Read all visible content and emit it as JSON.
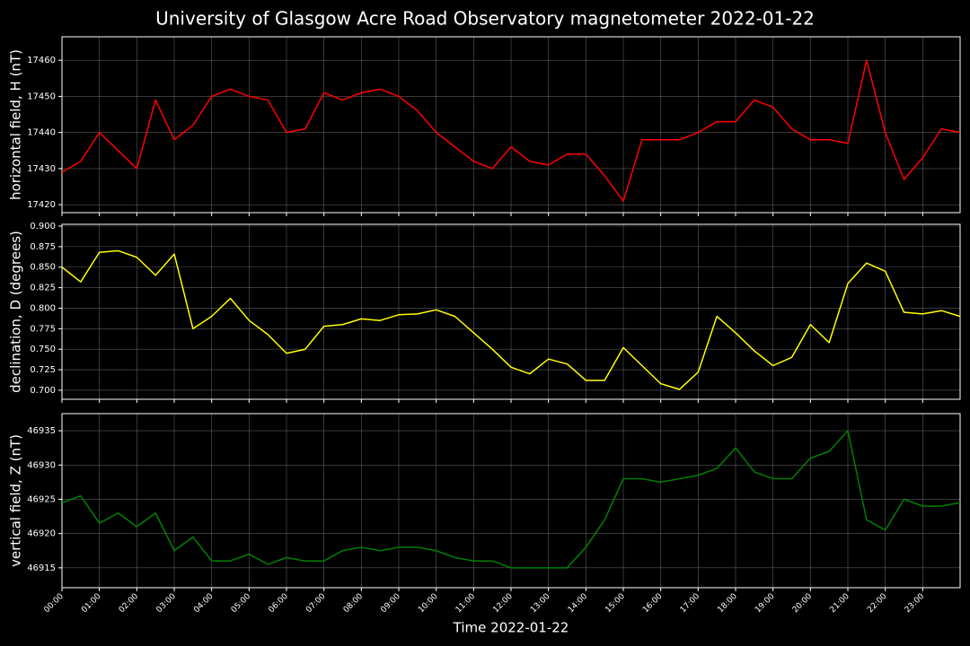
{
  "title": "University of Glasgow Acre Road Observatory magnetometer 2022-01-22",
  "chart_data": [
    {
      "type": "line",
      "ylabel": "horizontal field, H (nT)",
      "color": "#ff0000",
      "grid": true,
      "x": [
        0,
        0.5,
        1,
        1.5,
        2,
        2.5,
        3,
        3.5,
        4,
        4.5,
        5,
        5.5,
        6,
        6.5,
        7,
        7.5,
        8,
        8.5,
        9,
        9.5,
        10,
        10.5,
        11,
        11.5,
        12,
        12.5,
        13,
        13.5,
        14,
        14.5,
        15,
        15.5,
        16,
        16.5,
        17,
        17.5,
        18,
        18.5,
        19,
        19.5,
        20,
        20.5,
        21,
        21.5,
        22,
        22.5,
        23,
        23.5,
        24
      ],
      "values": [
        17429,
        17432,
        17440,
        17435,
        17430,
        17449,
        17438,
        17442,
        17450,
        17452,
        17450,
        17449,
        17440,
        17441,
        17451,
        17449,
        17451,
        17452,
        17450,
        17446,
        17440,
        17436,
        17432,
        17430,
        17436,
        17432,
        17431,
        17434,
        17434,
        17428,
        17421,
        17438,
        17438,
        17438,
        17440,
        17443,
        17443,
        17449,
        17447,
        17441,
        17438,
        17438,
        17437,
        17460,
        17440,
        17427,
        17433,
        17441,
        17440
      ],
      "xlim": [
        0,
        24
      ],
      "ylim": [
        17417.8,
        17466.5
      ],
      "yticks": [
        17420,
        17430,
        17440,
        17450,
        17460
      ]
    },
    {
      "type": "line",
      "ylabel": "declination, D (degrees)",
      "color": "#ffff00",
      "grid": true,
      "x": [
        0,
        0.5,
        1,
        1.5,
        2,
        2.5,
        3,
        3.5,
        4,
        4.5,
        5,
        5.5,
        6,
        6.5,
        7,
        7.5,
        8,
        8.5,
        9,
        9.5,
        10,
        10.5,
        11,
        11.5,
        12,
        12.5,
        13,
        13.5,
        14,
        14.5,
        15,
        15.5,
        16,
        16.5,
        17,
        17.5,
        18,
        18.5,
        19,
        19.5,
        20,
        20.5,
        21,
        21.5,
        22,
        22.5,
        23,
        23.5,
        24
      ],
      "values": [
        0.85,
        0.832,
        0.868,
        0.87,
        0.862,
        0.84,
        0.866,
        0.775,
        0.79,
        0.812,
        0.785,
        0.768,
        0.745,
        0.75,
        0.778,
        0.78,
        0.787,
        0.785,
        0.792,
        0.793,
        0.798,
        0.79,
        0.77,
        0.75,
        0.728,
        0.72,
        0.738,
        0.732,
        0.712,
        0.712,
        0.752,
        0.73,
        0.708,
        0.701,
        0.722,
        0.79,
        0.77,
        0.748,
        0.73,
        0.74,
        0.78,
        0.758,
        0.83,
        0.855,
        0.845,
        0.795,
        0.793,
        0.797,
        0.79
      ],
      "xlim": [
        0,
        24
      ],
      "ylim": [
        0.689,
        0.9022
      ],
      "yticks": [
        {
          "value": 0.7,
          "label": "0.700"
        },
        0.725,
        {
          "value": 0.75,
          "label": "0.750"
        },
        0.775,
        {
          "value": 0.8,
          "label": "0.800"
        },
        0.825,
        {
          "value": 0.85,
          "label": "0.850"
        },
        0.875,
        {
          "value": 0.9,
          "label": "0.900"
        }
      ]
    },
    {
      "type": "line",
      "ylabel": "vertical field, Z (nT)",
      "xlabel": "Time 2022-01-22",
      "color": "#008000",
      "grid": true,
      "x": [
        0,
        0.5,
        1,
        1.5,
        2,
        2.5,
        3,
        3.5,
        4,
        4.5,
        5,
        5.5,
        6,
        6.5,
        7,
        7.5,
        8,
        8.5,
        9,
        9.5,
        10,
        10.5,
        11,
        11.5,
        12,
        12.5,
        13,
        13.5,
        14,
        14.5,
        15,
        15.5,
        16,
        16.5,
        17,
        17.5,
        18,
        18.5,
        19,
        19.5,
        20,
        20.5,
        21,
        21.5,
        22,
        22.5,
        23,
        23.5,
        24
      ],
      "values": [
        46924.5,
        46925.5,
        46921.5,
        46923,
        46921,
        46923,
        46917.5,
        46919.5,
        46916,
        46916,
        46917,
        46915.5,
        46916.5,
        46916,
        46916,
        46917.5,
        46918,
        46917.5,
        46918,
        46918,
        46917.5,
        46916.5,
        46916,
        46916,
        46915,
        46915,
        46915,
        46915,
        46918,
        46922,
        46928,
        46928,
        46927.5,
        46928,
        46928.5,
        46929.5,
        46932.5,
        46929,
        46928,
        46928,
        46931,
        46932,
        46935,
        46922,
        46920.5,
        46925,
        46924,
        46924,
        46924.5
      ],
      "xlim": [
        0,
        24
      ],
      "ylim": [
        46912.1,
        46937.5
      ],
      "yticks": [
        46915,
        46920,
        46925,
        46930,
        46935
      ],
      "xticks": [
        {
          "value": 0,
          "label": "00:00"
        },
        {
          "value": 1,
          "label": "01:00"
        },
        {
          "value": 2,
          "label": "02:00"
        },
        {
          "value": 3,
          "label": "03:00"
        },
        {
          "value": 4,
          "label": "04:00"
        },
        {
          "value": 5,
          "label": "05:00"
        },
        {
          "value": 6,
          "label": "06:00"
        },
        {
          "value": 7,
          "label": "07:00"
        },
        {
          "value": 8,
          "label": "08:00"
        },
        {
          "value": 9,
          "label": "09:00"
        },
        {
          "value": 10,
          "label": "10:00"
        },
        {
          "value": 11,
          "label": "11:00"
        },
        {
          "value": 12,
          "label": "12:00"
        },
        {
          "value": 13,
          "label": "13:00"
        },
        {
          "value": 14,
          "label": "14:00"
        },
        {
          "value": 15,
          "label": "15:00"
        },
        {
          "value": 16,
          "label": "16:00"
        },
        {
          "value": 17,
          "label": "17:00"
        },
        {
          "value": 18,
          "label": "18:00"
        },
        {
          "value": 19,
          "label": "19:00"
        },
        {
          "value": 20,
          "label": "20:00"
        },
        {
          "value": 21,
          "label": "21:00"
        },
        {
          "value": 22,
          "label": "22:00"
        },
        {
          "value": 23,
          "label": "23:00"
        }
      ]
    }
  ]
}
